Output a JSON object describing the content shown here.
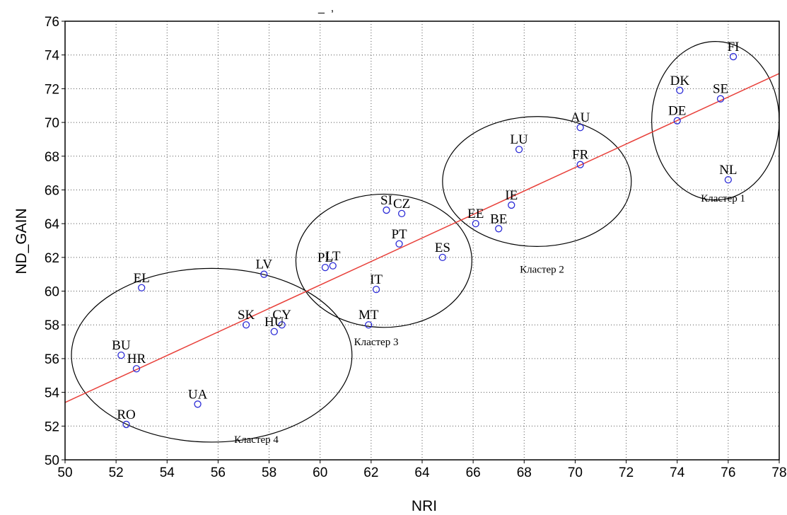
{
  "chart_data": {
    "type": "scatter",
    "title_fragment": "_  ,",
    "xlabel": "NRI",
    "ylabel": "ND_GAIN",
    "xlim": [
      50,
      78
    ],
    "ylim": [
      50,
      76
    ],
    "x_ticks": [
      50,
      52,
      54,
      56,
      58,
      60,
      62,
      64,
      66,
      68,
      70,
      72,
      74,
      76,
      78
    ],
    "y_ticks": [
      50,
      52,
      54,
      56,
      58,
      60,
      62,
      64,
      66,
      68,
      70,
      72,
      74,
      76
    ],
    "grid": true,
    "colors": {
      "points": "#2b2bd6",
      "fit_line": "#e8403a",
      "grid": "#555555",
      "ellipse": "#000000"
    },
    "fit_line": {
      "x": [
        50,
        78
      ],
      "y": [
        53.4,
        72.9
      ]
    },
    "points": [
      {
        "label": "FI",
        "x": 76.2,
        "y": 73.9
      },
      {
        "label": "DK",
        "x": 74.1,
        "y": 71.9
      },
      {
        "label": "SE",
        "x": 75.7,
        "y": 71.4
      },
      {
        "label": "DE",
        "x": 74.0,
        "y": 70.1
      },
      {
        "label": "NL",
        "x": 76.0,
        "y": 66.6
      },
      {
        "label": "AU",
        "x": 70.2,
        "y": 69.7
      },
      {
        "label": "LU",
        "x": 67.8,
        "y": 68.4
      },
      {
        "label": "FR",
        "x": 70.2,
        "y": 67.5
      },
      {
        "label": "IE",
        "x": 67.5,
        "y": 65.1
      },
      {
        "label": "EE",
        "x": 66.1,
        "y": 64.0
      },
      {
        "label": "BE",
        "x": 67.0,
        "y": 63.7
      },
      {
        "label": "SI",
        "x": 62.6,
        "y": 64.8
      },
      {
        "label": "CZ",
        "x": 63.2,
        "y": 64.6
      },
      {
        "label": "PT",
        "x": 63.1,
        "y": 62.8
      },
      {
        "label": "ES",
        "x": 64.8,
        "y": 62.0
      },
      {
        "label": "PL",
        "x": 60.2,
        "y": 61.4
      },
      {
        "label": "LT",
        "x": 60.5,
        "y": 61.5
      },
      {
        "label": "IT",
        "x": 62.2,
        "y": 60.1
      },
      {
        "label": "MT",
        "x": 61.9,
        "y": 58.0
      },
      {
        "label": "LV",
        "x": 57.8,
        "y": 61.0
      },
      {
        "label": "EL",
        "x": 53.0,
        "y": 60.2
      },
      {
        "label": "SK",
        "x": 57.1,
        "y": 58.0
      },
      {
        "label": "CY",
        "x": 58.5,
        "y": 58.0
      },
      {
        "label": "HU",
        "x": 58.2,
        "y": 57.6
      },
      {
        "label": "BU",
        "x": 52.2,
        "y": 56.2
      },
      {
        "label": "HR",
        "x": 52.8,
        "y": 55.4
      },
      {
        "label": "UA",
        "x": 55.2,
        "y": 53.3
      },
      {
        "label": "RO",
        "x": 52.4,
        "y": 52.1
      }
    ],
    "clusters": [
      {
        "label": "Кластер 1",
        "cx": 75.5,
        "cy": 70.1,
        "rx": 2.5,
        "ry": 4.7,
        "label_x": 75.8,
        "label_y": 65.3
      },
      {
        "label": "Кластер 2",
        "cx": 68.5,
        "cy": 66.5,
        "rx": 3.7,
        "ry": 3.85,
        "label_x": 68.7,
        "label_y": 61.1
      },
      {
        "label": "Кластер 3",
        "cx": 62.5,
        "cy": 61.8,
        "rx": 3.45,
        "ry": 3.95,
        "label_x": 62.2,
        "label_y": 56.8
      },
      {
        "label": "Кластер 4",
        "cx": 55.75,
        "cy": 56.2,
        "rx": 5.5,
        "ry": 5.15,
        "label_x": 57.5,
        "label_y": 51.0
      }
    ]
  }
}
